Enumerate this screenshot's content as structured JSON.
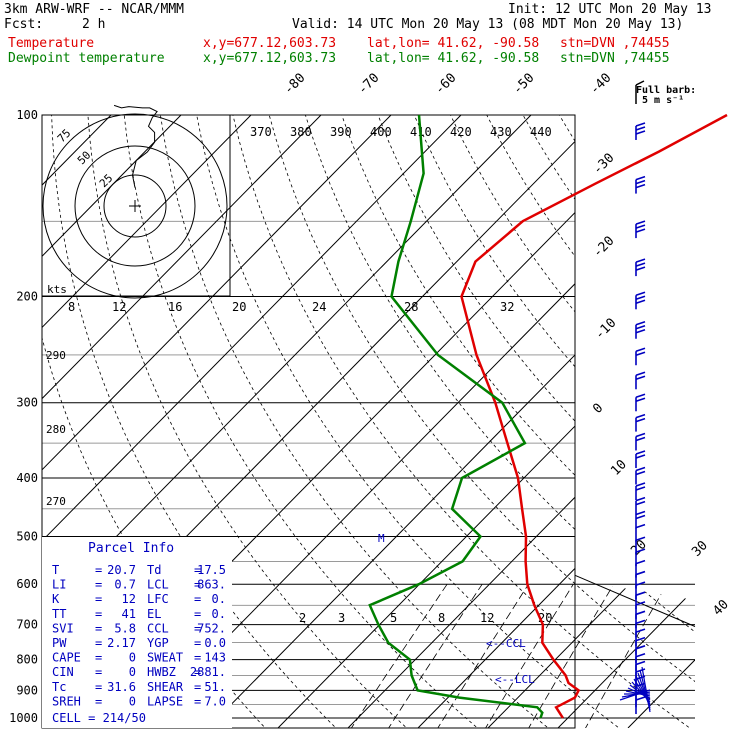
{
  "header": {
    "model": "3km ARW-WRF -- NCAR/MMM",
    "init": "Init: 12 UTC Mon 20 May 13",
    "fcst_label": "Fcst:",
    "fcst_value": "2 h",
    "valid": "Valid: 14 UTC Mon 20 May 13 (08 MDT Mon 20 May 13)",
    "temp_label": "Temperature",
    "dew_label": "Dewpoint temperature",
    "xy": "x,y=677.12,603.73",
    "latlon": "lat,lon= 41.62, -90.58",
    "stn": "stn=DVN ,74455"
  },
  "colors": {
    "temperature": "#e00000",
    "dewpoint": "#008000",
    "barbs": "#0000c0",
    "parcel": "#0000c0",
    "grid": "#000000"
  },
  "legend": {
    "barb_title": "Full barb:",
    "barb_value": "5 m s⁻¹"
  },
  "hodograph": {
    "units": "kts",
    "ring_labels": [
      "25",
      "50",
      "75"
    ]
  },
  "hodo_temp_axis": {
    "values": [
      "8",
      "12",
      "16",
      "20",
      "24",
      "28",
      "32"
    ]
  },
  "theta_labels": [
    "370",
    "380",
    "390",
    "400",
    "410",
    "420",
    "430",
    "440"
  ],
  "theta_low_labels": [
    "290",
    "280",
    "270"
  ],
  "mixing_ratio_labels": [
    "2",
    "3",
    "5",
    "8",
    "12",
    "20"
  ],
  "isotherm_labels": [
    "-80",
    "-70",
    "-60",
    "-50",
    "-40",
    "-30",
    "-20",
    "-10",
    "0",
    "10",
    "20",
    "30",
    "40"
  ],
  "markers": {
    "ccl": "<--CCL",
    "lcl": "<--LCL"
  },
  "parcel_info": {
    "title": "Parcel Info",
    "rows": [
      {
        "l1": "T",
        "v1": "20.7",
        "l2": "Td",
        "v2": "17.5"
      },
      {
        "l1": "LI",
        "v1": "0.7",
        "l2": "LCL",
        "v2": "863."
      },
      {
        "l1": "K",
        "v1": "12",
        "l2": "LFC",
        "v2": "0."
      },
      {
        "l1": "TT",
        "v1": "41",
        "l2": "EL",
        "v2": "0."
      },
      {
        "l1": "SVI",
        "v1": "5.8",
        "l2": "CCL",
        "v2": "752."
      },
      {
        "l1": "PW",
        "v1": "2.17",
        "l2": "YGP",
        "v2": "0.0"
      },
      {
        "l1": "CAPE",
        "v1": "0",
        "l2": "SWEAT",
        "v2": "143"
      },
      {
        "l1": "CIN",
        "v1": "0",
        "l2": "HWBZ",
        "v2": "2881."
      },
      {
        "l1": "Tc",
        "v1": "31.6",
        "l2": "SHEAR",
        "v2": "51."
      },
      {
        "l1": "SREH",
        "v1": "0",
        "l2": "LAPSE",
        "v2": "7.0"
      }
    ],
    "cell": "CELL = 214/50"
  },
  "chart_data": {
    "type": "line",
    "pressure_levels": [
      "100",
      "200",
      "300",
      "400",
      "500",
      "600",
      "700",
      "800",
      "900",
      "1000"
    ],
    "series": [
      {
        "name": "Temperature",
        "points": [
          [
            1000,
            20.7
          ],
          [
            960,
            18.2
          ],
          [
            925,
            19.5
          ],
          [
            900,
            19.0
          ],
          [
            875,
            16.5
          ],
          [
            850,
            15.0
          ],
          [
            800,
            11.0
          ],
          [
            750,
            7.0
          ],
          [
            700,
            4.5
          ],
          [
            650,
            0.5
          ],
          [
            600,
            -3.5
          ],
          [
            550,
            -7.0
          ],
          [
            500,
            -10.5
          ],
          [
            450,
            -15.0
          ],
          [
            400,
            -20.0
          ],
          [
            350,
            -26.5
          ],
          [
            300,
            -34.0
          ],
          [
            250,
            -43.5
          ],
          [
            200,
            -54.0
          ],
          [
            175,
            -57.0
          ],
          [
            150,
            -56.0
          ],
          [
            130,
            -51.0
          ],
          [
            115,
            -46.5
          ],
          [
            100,
            -42.0
          ]
        ]
      },
      {
        "name": "Dewpoint temperature",
        "points": [
          [
            1000,
            17.5
          ],
          [
            980,
            17.0
          ],
          [
            960,
            15.5
          ],
          [
            925,
            3.0
          ],
          [
            900,
            -4.0
          ],
          [
            850,
            -7.0
          ],
          [
            800,
            -9.5
          ],
          [
            750,
            -15.0
          ],
          [
            700,
            -19.0
          ],
          [
            650,
            -23.0
          ],
          [
            600,
            -19.0
          ],
          [
            550,
            -16.0
          ],
          [
            500,
            -17.0
          ],
          [
            450,
            -25.0
          ],
          [
            400,
            -28.0
          ],
          [
            350,
            -24.0
          ],
          [
            300,
            -33.0
          ],
          [
            250,
            -49.0
          ],
          [
            200,
            -64.0
          ],
          [
            175,
            -68.0
          ],
          [
            150,
            -72.0
          ],
          [
            125,
            -77.0
          ],
          [
            100,
            -86.0
          ]
        ]
      }
    ],
    "hodograph_trace": [
      [
        0,
        15
      ],
      [
        -2,
        25
      ],
      [
        1,
        37
      ],
      [
        10,
        44
      ],
      [
        16,
        52
      ],
      [
        16,
        60
      ],
      [
        11,
        65
      ],
      [
        14,
        72
      ],
      [
        18,
        77
      ],
      [
        12,
        80
      ],
      [
        6,
        80
      ],
      [
        -5,
        81
      ],
      [
        -11,
        80
      ],
      [
        -17,
        82
      ]
    ]
  }
}
